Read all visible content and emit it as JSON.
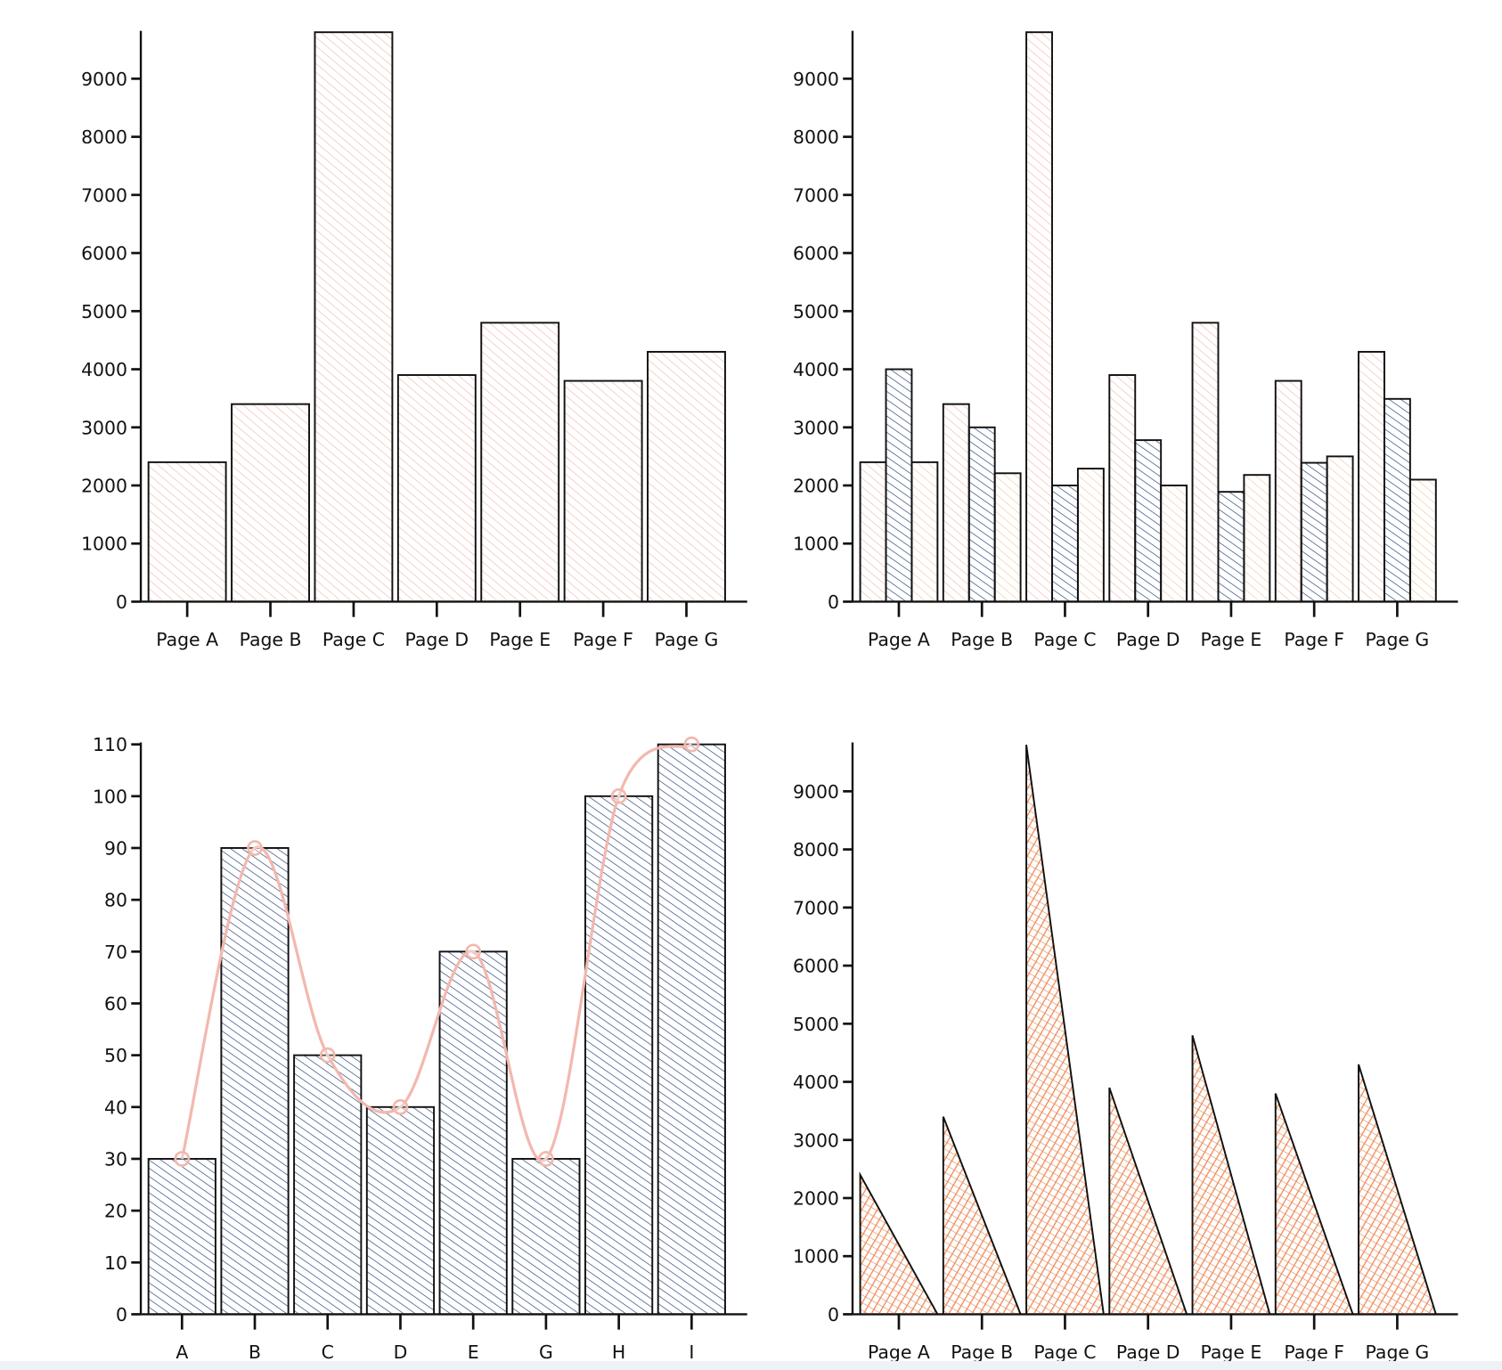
{
  "colors": {
    "pink": "#f2b8ae",
    "navy": "#2c4a7c",
    "tan": "#f0c9a0",
    "orange": "#ec8a55",
    "line": "#f2b8ae",
    "axis": "#111111"
  },
  "chart_data": [
    {
      "type": "bar",
      "categories": [
        "Page A",
        "Page B",
        "Page C",
        "Page D",
        "Page E",
        "Page F",
        "Page G"
      ],
      "series": [
        {
          "values": [
            2400,
            3400,
            9800,
            3900,
            4800,
            3800,
            4300
          ],
          "color": "pink",
          "fill": "hachure"
        }
      ],
      "yticks": [
        0,
        1000,
        2000,
        3000,
        4000,
        5000,
        6000,
        7000,
        8000,
        9000
      ],
      "ylim": [
        0,
        9800
      ],
      "grid": false
    },
    {
      "type": "bar",
      "categories": [
        "Page A",
        "Page B",
        "Page C",
        "Page D",
        "Page E",
        "Page F",
        "Page G"
      ],
      "series": [
        {
          "values": [
            2400,
            3400,
            9800,
            3900,
            4800,
            3800,
            4300
          ],
          "color": "pink",
          "fill": "hachure"
        },
        {
          "values": [
            4000,
            3000,
            2000,
            2780,
            1890,
            2390,
            3490
          ],
          "color": "navy",
          "fill": "hachure"
        },
        {
          "values": [
            2400,
            2210,
            2290,
            2000,
            2181,
            2500,
            2100
          ],
          "color": "tan",
          "fill": "hachure"
        }
      ],
      "yticks": [
        0,
        1000,
        2000,
        3000,
        4000,
        5000,
        6000,
        7000,
        8000,
        9000
      ],
      "ylim": [
        0,
        9800
      ],
      "grid": false
    },
    {
      "type": "bar+line",
      "categories": [
        "A",
        "B",
        "C",
        "D",
        "E",
        "G",
        "H",
        "I"
      ],
      "series": [
        {
          "type": "bar",
          "values": [
            30,
            90,
            50,
            40,
            70,
            30,
            100,
            110
          ],
          "color": "navy",
          "fill": "hachure"
        },
        {
          "type": "line",
          "values": [
            30,
            90,
            50,
            40,
            70,
            30,
            100,
            110
          ],
          "color": "line",
          "curve": "smooth"
        }
      ],
      "yticks": [
        0,
        10,
        20,
        30,
        40,
        50,
        60,
        70,
        80,
        90,
        100,
        110
      ],
      "ylim": [
        0,
        110
      ],
      "grid": false
    },
    {
      "type": "bar",
      "shape": "triangle",
      "categories": [
        "Page A",
        "Page B",
        "Page C",
        "Page D",
        "Page E",
        "Page F",
        "Page G"
      ],
      "series": [
        {
          "values": [
            2400,
            3400,
            9800,
            3900,
            4800,
            3800,
            4300
          ],
          "color": "orange",
          "fill": "cross-hatch"
        }
      ],
      "yticks": [
        0,
        1000,
        2000,
        3000,
        4000,
        5000,
        6000,
        7000,
        8000,
        9000
      ],
      "ylim": [
        0,
        9800
      ],
      "grid": false
    }
  ]
}
